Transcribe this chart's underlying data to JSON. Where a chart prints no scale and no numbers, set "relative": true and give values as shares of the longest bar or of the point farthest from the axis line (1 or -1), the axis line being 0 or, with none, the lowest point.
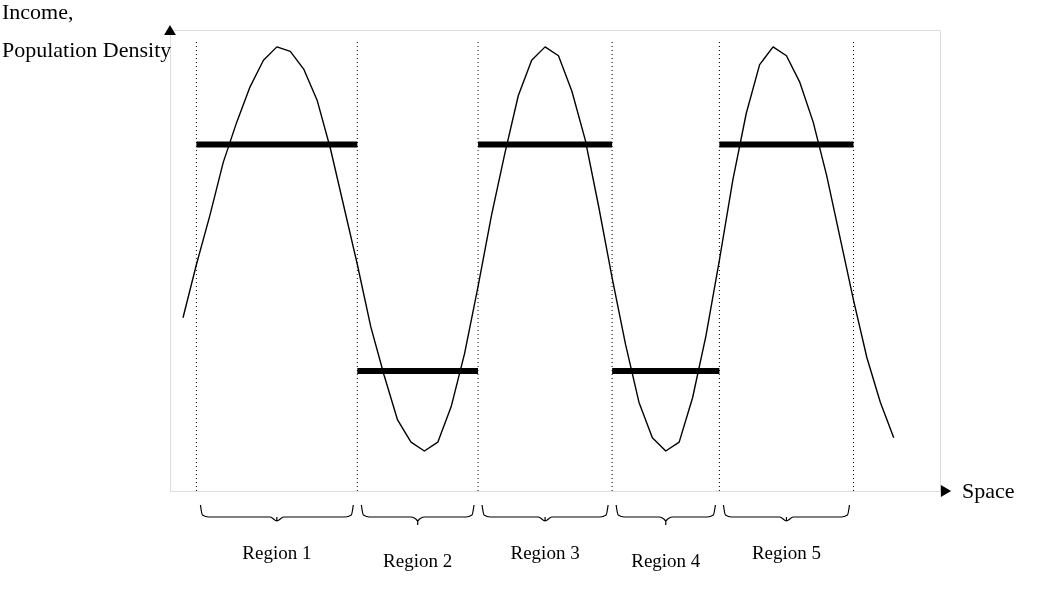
{
  "chart_data": {
    "type": "line",
    "relative": true,
    "xlabel": "Space",
    "ylabel": "Income, Population Density",
    "categories": [
      null,
      null,
      null,
      null,
      null,
      null,
      null,
      null,
      null,
      null,
      null,
      null,
      null,
      null,
      null,
      null,
      null,
      null,
      null,
      null,
      null,
      null,
      null,
      null,
      null,
      null,
      null,
      null,
      null,
      null,
      null,
      null,
      null,
      null,
      null,
      null,
      null,
      null,
      null,
      null,
      null,
      null,
      null,
      null,
      null,
      null,
      null,
      null,
      null,
      null,
      null,
      null,
      null,
      null
    ],
    "series": [
      {
        "color": "#000000",
        "values": [
          0.39,
          0.51,
          0.62,
          0.74,
          0.83,
          0.91,
          0.97,
          1.0,
          0.99,
          0.95,
          0.88,
          0.77,
          0.64,
          0.51,
          0.37,
          0.26,
          0.16,
          0.11,
          0.09,
          0.11,
          0.19,
          0.31,
          0.46,
          0.62,
          0.76,
          0.89,
          0.97,
          1.0,
          0.98,
          0.9,
          0.79,
          0.64,
          0.48,
          0.33,
          0.2,
          0.12,
          0.09,
          0.11,
          0.21,
          0.35,
          0.52,
          0.7,
          0.85,
          0.96,
          1.0,
          0.98,
          0.92,
          0.83,
          0.71,
          0.57,
          0.43,
          0.3,
          0.2,
          0.12
        ]
      },
      {
        "color": "#000000",
        "values": [
          null,
          0.78,
          0.78,
          0.78,
          0.78,
          0.78,
          0.78,
          0.78,
          0.78,
          0.78,
          0.78,
          0.78,
          0.78,
          0.78,
          null,
          null,
          null,
          null,
          null,
          null,
          null,
          null,
          0.78,
          0.78,
          0.78,
          0.78,
          0.78,
          0.78,
          0.78,
          0.78,
          0.78,
          0.78,
          0.78,
          null,
          null,
          null,
          null,
          null,
          null,
          null,
          0.78,
          0.78,
          0.78,
          0.78,
          0.78,
          0.78,
          0.78,
          0.78,
          0.78,
          0.78,
          0.78,
          null,
          null,
          null
        ]
      },
      {
        "color": "#000000",
        "values": [
          null,
          null,
          null,
          null,
          null,
          null,
          null,
          null,
          null,
          null,
          null,
          null,
          null,
          0.27,
          0.27,
          0.27,
          0.27,
          0.27,
          0.27,
          0.27,
          0.27,
          0.27,
          0.27,
          null,
          null,
          null,
          null,
          null,
          null,
          null,
          null,
          null,
          0.27,
          0.27,
          0.27,
          0.27,
          0.27,
          0.27,
          0.27,
          0.27,
          0.27,
          null,
          null,
          null,
          null,
          null,
          null,
          null,
          null,
          null,
          null,
          null,
          null,
          null
        ]
      }
    ],
    "annotations": [
      "Region 1",
      "Region 2",
      "Region 3",
      "Region 4",
      "Region 5"
    ]
  }
}
